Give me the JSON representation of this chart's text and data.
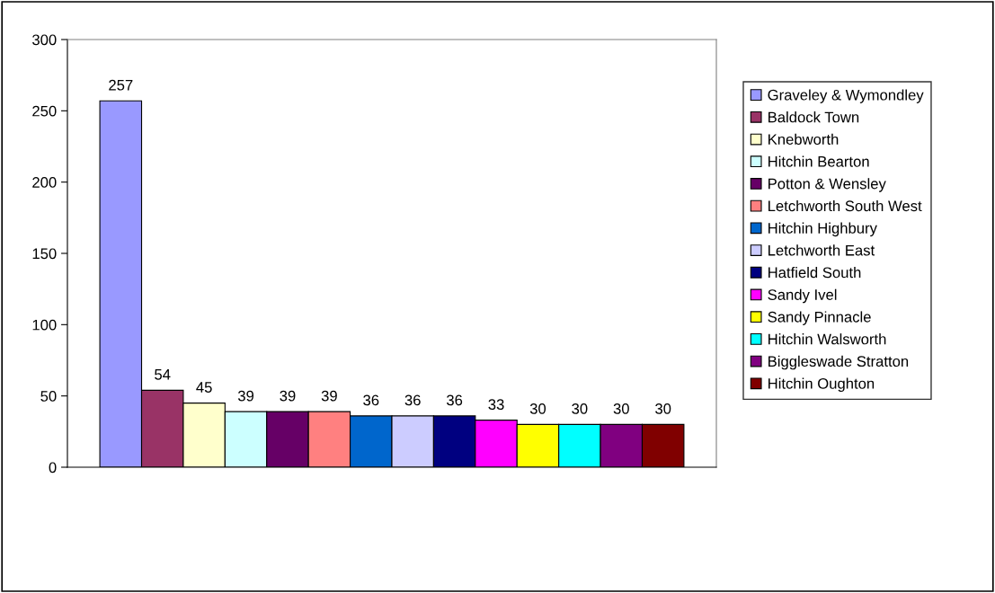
{
  "chart_data": {
    "type": "bar",
    "categories": [
      null
    ],
    "series": [
      {
        "name": "Graveley & Wymondley",
        "color": "#9999ff",
        "values": [
          257
        ]
      },
      {
        "name": "Baldock Town",
        "color": "#993366",
        "values": [
          54
        ]
      },
      {
        "name": "Knebworth",
        "color": "#ffffcc",
        "values": [
          45
        ]
      },
      {
        "name": "Hitchin Bearton",
        "color": "#ccffff",
        "values": [
          39
        ]
      },
      {
        "name": "Potton & Wensley",
        "color": "#660066",
        "values": [
          39
        ]
      },
      {
        "name": "Letchworth South West",
        "color": "#ff8080",
        "values": [
          39
        ]
      },
      {
        "name": "Hitchin Highbury",
        "color": "#0066cc",
        "values": [
          36
        ]
      },
      {
        "name": "Letchworth East",
        "color": "#ccccff",
        "values": [
          36
        ]
      },
      {
        "name": "Hatfield South",
        "color": "#000080",
        "values": [
          36
        ]
      },
      {
        "name": "Sandy Ivel",
        "color": "#ff00ff",
        "values": [
          33
        ]
      },
      {
        "name": "Sandy Pinnacle",
        "color": "#ffff00",
        "values": [
          30
        ]
      },
      {
        "name": "Hitchin Walsworth",
        "color": "#00ffff",
        "values": [
          30
        ]
      },
      {
        "name": "Biggleswade Stratton",
        "color": "#800080",
        "values": [
          30
        ]
      },
      {
        "name": "Hitchin Oughton",
        "color": "#800000",
        "values": [
          30
        ]
      }
    ],
    "ylim": [
      0,
      300
    ],
    "yticks": [
      0,
      50,
      100,
      150,
      200,
      250,
      300
    ],
    "data_labels": true,
    "legend": "right",
    "grid": false
  }
}
